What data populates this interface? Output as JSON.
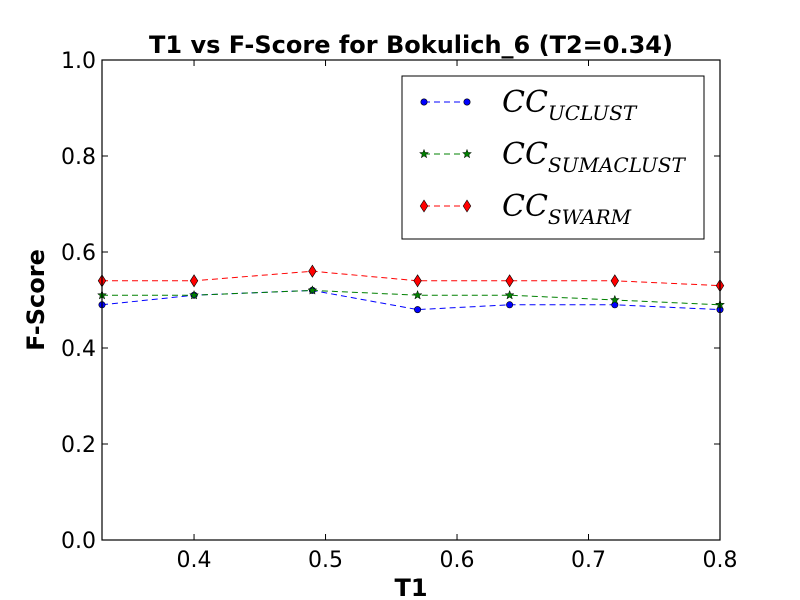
{
  "chart_data": {
    "type": "line",
    "title": "T1 vs F-Score for Bokulich_6 (T2=0.34)",
    "xlabel": "T1",
    "ylabel": "F-Score",
    "xlim": [
      0.33,
      0.8
    ],
    "ylim": [
      0.0,
      1.0
    ],
    "xticks": [
      "0.4",
      "0.5",
      "0.6",
      "0.7",
      "0.8"
    ],
    "yticks": [
      "0.0",
      "0.2",
      "0.4",
      "0.6",
      "0.8",
      "1.0"
    ],
    "x": [
      0.33,
      0.4,
      0.49,
      0.57,
      0.64,
      0.72,
      0.8
    ],
    "grid": false,
    "legend_position": "top-right",
    "series": [
      {
        "name": "CC_UCLUST",
        "legend_main": "CC",
        "legend_sub": "UCLUST",
        "color": "#0000ff",
        "marker": "circle",
        "values": [
          0.49,
          0.51,
          0.52,
          0.48,
          0.49,
          0.49,
          0.48
        ]
      },
      {
        "name": "CC_SUMACLUST",
        "legend_main": "CC",
        "legend_sub": "SUMACLUST",
        "color": "#008000",
        "marker": "star",
        "values": [
          0.51,
          0.51,
          0.52,
          0.51,
          0.51,
          0.5,
          0.49
        ]
      },
      {
        "name": "CC_SWARM",
        "legend_main": "CC",
        "legend_sub": "SWARM",
        "color": "#ff0000",
        "marker": "diamond",
        "values": [
          0.54,
          0.54,
          0.56,
          0.54,
          0.54,
          0.54,
          0.53
        ]
      }
    ]
  }
}
